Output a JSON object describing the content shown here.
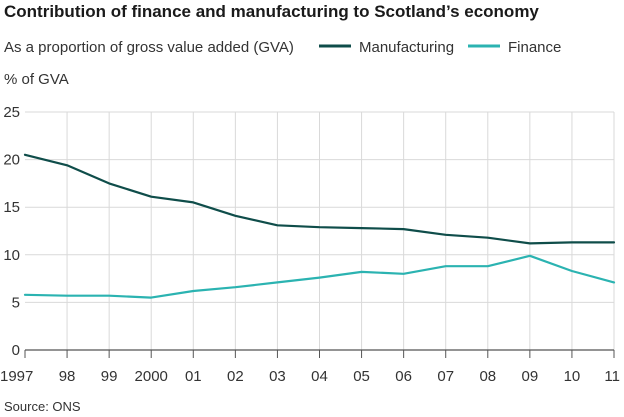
{
  "chart_data": {
    "type": "line",
    "title": "Contribution of finance and manufacturing to Scotland’s economy",
    "subtitle": "As a proportion of gross value added (GVA)",
    "ylabel": "% of GVA",
    "xlabel": "",
    "source": "Source: ONS",
    "categories": [
      "1997",
      "98",
      "99",
      "2000",
      "01",
      "02",
      "03",
      "04",
      "05",
      "06",
      "07",
      "08",
      "09",
      "10",
      "11"
    ],
    "ylim": [
      0,
      25
    ],
    "yticks": [
      0,
      5,
      10,
      15,
      20,
      25
    ],
    "grid": true,
    "legend_position": "top-right",
    "series": [
      {
        "name": "Manufacturing",
        "color": "#0f4d4a",
        "values": [
          20.5,
          19.4,
          17.5,
          16.1,
          15.5,
          14.1,
          13.1,
          12.9,
          12.8,
          12.7,
          12.1,
          11.8,
          11.2,
          11.3,
          11.3
        ]
      },
      {
        "name": "Finance",
        "color": "#2bb3b1",
        "values": [
          5.8,
          5.7,
          5.7,
          5.5,
          6.2,
          6.6,
          7.1,
          7.6,
          8.2,
          8.0,
          8.8,
          8.8,
          9.9,
          8.3,
          7.1
        ]
      }
    ]
  }
}
